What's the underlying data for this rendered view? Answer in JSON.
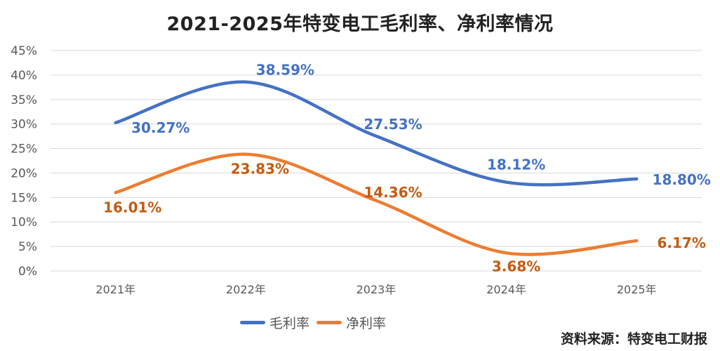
{
  "chart_data": {
    "type": "line",
    "title": "2021-2025年特变电工毛利率、净利率情况",
    "xlabel": "",
    "ylabel": "",
    "categories": [
      "2021年",
      "2022年",
      "2023年",
      "2024年",
      "2025年"
    ],
    "ylim": [
      0,
      45
    ],
    "yticks": [
      "0%",
      "5%",
      "10%",
      "15%",
      "20%",
      "25%",
      "30%",
      "35%",
      "40%",
      "45%"
    ],
    "grid": true,
    "smooth": true,
    "legend_position": "bottom",
    "series": [
      {
        "name": "毛利率",
        "color": "#4472C4",
        "label_color": "#4472C4",
        "values": [
          30.27,
          38.59,
          27.53,
          18.12,
          18.8
        ],
        "labels": [
          "30.27%",
          "38.59%",
          "27.53%",
          "18.12%",
          "18.80%"
        ]
      },
      {
        "name": "净利率",
        "color": "#ED7D31",
        "label_color": "#C55A11",
        "values": [
          16.01,
          23.83,
          14.36,
          3.68,
          6.17
        ],
        "labels": [
          "16.01%",
          "23.83%",
          "14.36%",
          "3.68%",
          "6.17%"
        ]
      }
    ],
    "source": "资料来源：特变电工财报"
  }
}
